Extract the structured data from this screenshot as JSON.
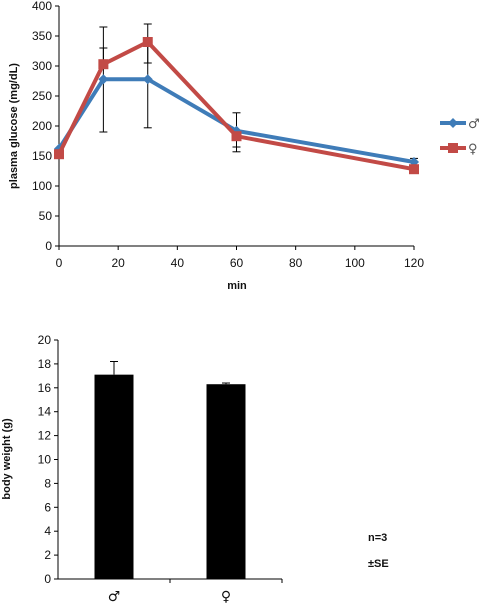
{
  "chart_data": [
    {
      "type": "line",
      "xlabel": "min",
      "ylabel": "plasma glucose (mg/dL)",
      "xlim": [
        0,
        120
      ],
      "ylim": [
        0,
        400
      ],
      "xticks": [
        0,
        20,
        40,
        60,
        80,
        100,
        120
      ],
      "yticks": [
        0,
        50,
        100,
        150,
        200,
        250,
        300,
        350,
        400
      ],
      "legend_position": "right",
      "x": [
        0,
        15,
        30,
        60,
        120
      ],
      "series": [
        {
          "name": "♂",
          "color": "#3f7cb8",
          "marker": "diamond",
          "values": [
            162,
            278,
            278,
            192,
            140
          ],
          "error_low": [
            0,
            190,
            197,
            157,
            132
          ],
          "error_high": [
            0,
            365,
            370,
            222,
            146
          ]
        },
        {
          "name": "♀",
          "color": "#c24a46",
          "marker": "square",
          "values": [
            153,
            303,
            340,
            183,
            128
          ],
          "error_low": [
            0,
            330,
            305,
            165,
            122
          ],
          "error_high": [
            0,
            0,
            0,
            0,
            0
          ]
        }
      ]
    },
    {
      "type": "bar",
      "categories": [
        "♂",
        "♀"
      ],
      "values": [
        17.1,
        16.3
      ],
      "errors": [
        1.1,
        0.1
      ],
      "ylabel": "body weight (g)",
      "ylim": [
        0,
        20
      ],
      "yticks": [
        0,
        2,
        4,
        6,
        8,
        10,
        12,
        14,
        16,
        18,
        20
      ],
      "bar_color": "#000000"
    }
  ],
  "notes": [
    "n=3",
    "±SE"
  ]
}
